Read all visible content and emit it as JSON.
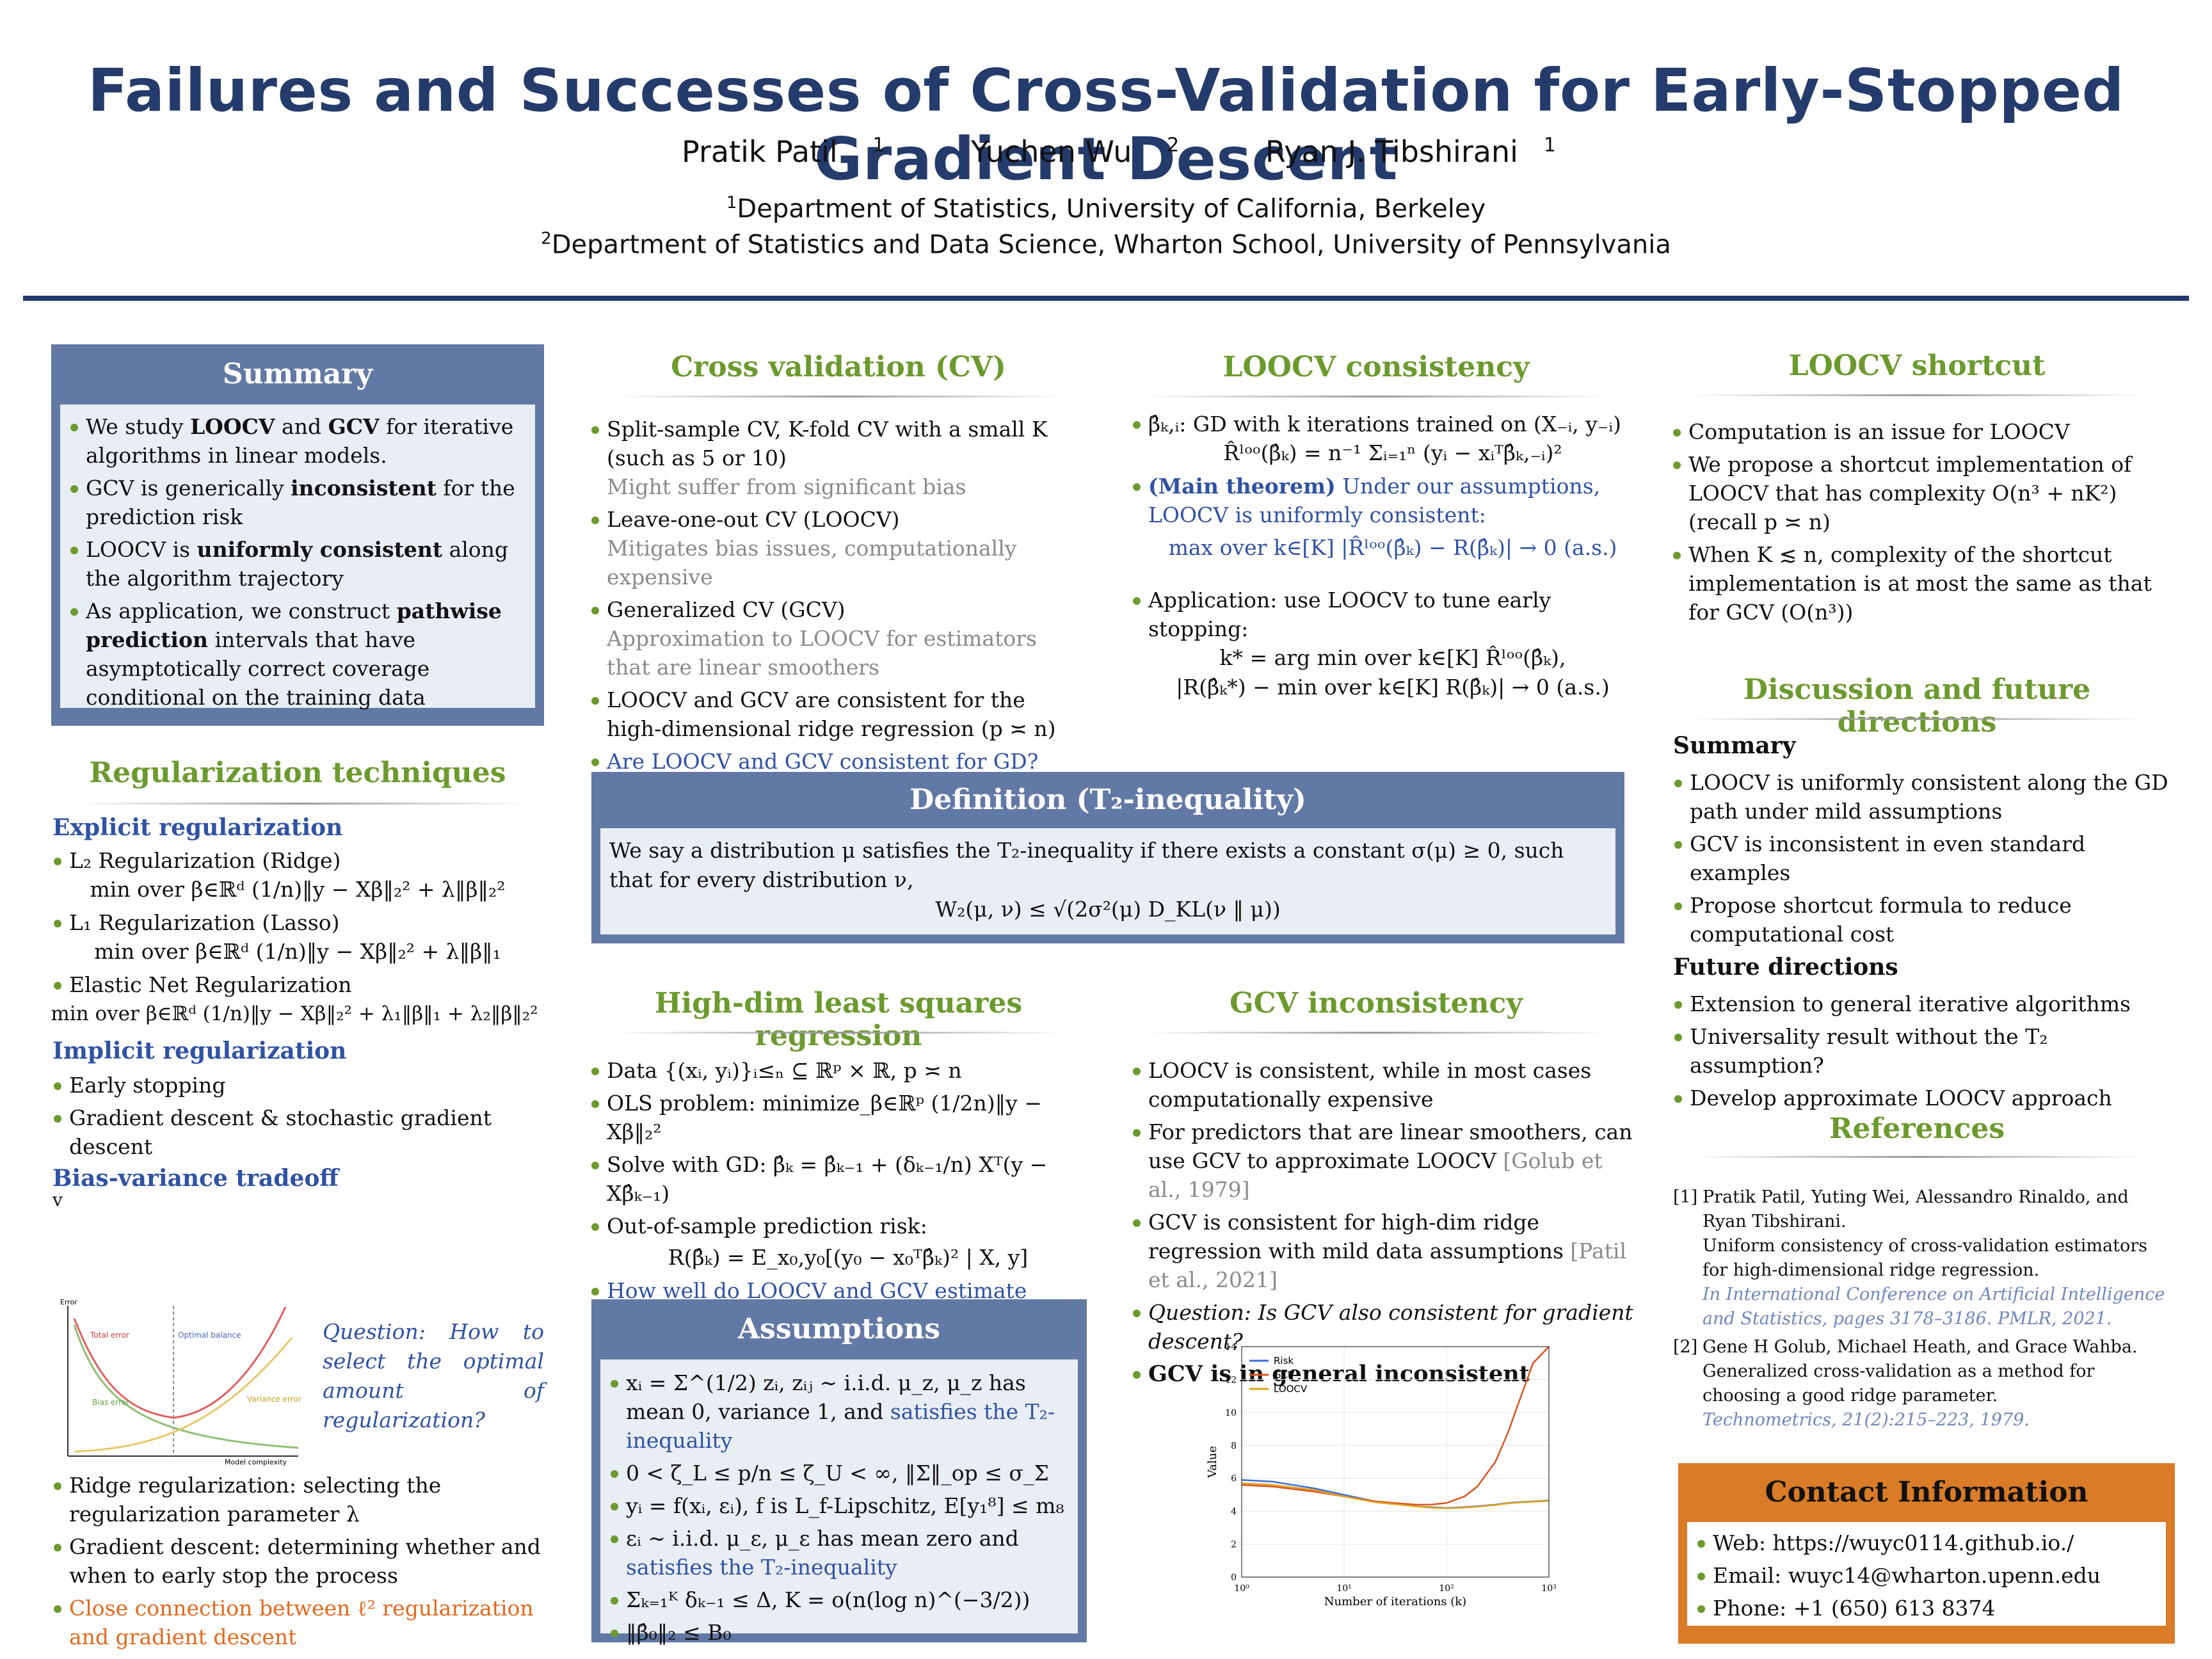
{
  "header": {
    "title": "Failures and Successes of Cross-Validation for Early-Stopped Gradient Descent",
    "authors": [
      {
        "name": "Pratik Patil",
        "sup": "1"
      },
      {
        "name": "Yuchen Wu",
        "sup": "2"
      },
      {
        "name": "Ryan J. Tibshirani",
        "sup": "1"
      }
    ],
    "affiliations": [
      {
        "sup": "1",
        "text": "Department of Statistics, University of California, Berkeley"
      },
      {
        "sup": "2",
        "text": "Department of Statistics and Data Science, Wharton School, University of Pennsylvania"
      }
    ]
  },
  "summary": {
    "title": "Summary",
    "items": [
      "We study LOOCV and GCV for iterative algorithms in linear models.",
      "GCV is generically inconsistent for the prediction risk",
      "LOOCV is uniformly consistent along the algorithm trajectory",
      "As application, we construct pathwise prediction intervals that have asymptotically correct coverage conditional on the training data"
    ]
  },
  "regularization": {
    "title": "Regularization techniques",
    "explicit_title": "Explicit regularization",
    "ridge_label": "L₂ Regularization (Ridge)",
    "ridge_formula": "min over β∈ℝᵈ  (1/n)‖y − Xβ‖₂² + λ‖β‖₂²",
    "lasso_label": "L₁ Regularization (Lasso)",
    "lasso_formula": "min over β∈ℝᵈ  (1/n)‖y − Xβ‖₂² + λ‖β‖₁",
    "enet_label": "Elastic Net Regularization",
    "enet_formula": "min over β∈ℝᵈ  (1/n)‖y − Xβ‖₂² + λ₁‖β‖₁ + λ₂‖β‖₂²",
    "implicit_title": "Implicit regularization",
    "implicit_items": [
      "Early stopping",
      "Gradient descent & stochastic gradient descent"
    ],
    "tradeoff_title": "Bias-variance tradeoff",
    "tradeoff_v": "v",
    "tradeoff_fig": {
      "y_label": "Error",
      "x_label": "Model complexity",
      "total": "Total error",
      "bias": "Bias error",
      "variance": "Variance error",
      "optimal": "Optimal balance"
    },
    "question": "Question: How to select the optimal amount of regularization?",
    "bottom_items": [
      "Ridge regularization: selecting the regularization parameter λ",
      "Gradient descent: determining whether and when to early stop the process"
    ],
    "bottom_orange": "Close connection between ℓ² regularization and gradient descent"
  },
  "cv": {
    "title": "Cross validation (CV)",
    "items": [
      {
        "text": "Split-sample CV, K-fold CV with a small K (such as 5 or 10)",
        "note": "Might suffer from significant bias"
      },
      {
        "text": "Leave-one-out CV (LOOCV)",
        "note": "Mitigates bias issues, computationally expensive"
      },
      {
        "text": "Generalized CV (GCV)",
        "note": "Approximation to LOOCV for estimators that are linear smoothers"
      },
      {
        "text": "LOOCV and GCV are consistent for the high-dimensional ridge regression (p ≍ n)",
        "note": ""
      }
    ],
    "question": "Are LOOCV and GCV consistent for GD?"
  },
  "loocv_consistency": {
    "title": "LOOCV consistency",
    "item1": "β̂ₖ,ᵢ: GD with k iterations trained on (X₋ᵢ, y₋ᵢ)",
    "formula1": "R̂ˡᵒᵒ(β̂ₖ) = n⁻¹ Σᵢ₌₁ⁿ (yᵢ − xᵢᵀβ̂ₖ,₋ᵢ)²",
    "theorem_lead": "(Main theorem)",
    "theorem_text": "Under our assumptions, LOOCV is uniformly consistent:",
    "formula2": "max over k∈[K] |R̂ˡᵒᵒ(β̂ₖ) − R(β̂ₖ)| → 0 (a.s.)",
    "item3": "Application: use LOOCV to tune early stopping:",
    "formula3": "k* = arg min over k∈[K] R̂ˡᵒᵒ(β̂ₖ),",
    "formula4": "|R(β̂ₖ*) − min over k∈[K] R(β̂ₖ)| → 0 (a.s.)"
  },
  "definition": {
    "title": "Definition (T₂-inequality)",
    "text": "We say a distribution μ satisfies the T₂-inequality if there exists a constant σ(μ) ≥ 0, such that for every distribution ν,",
    "formula": "W₂(μ, ν) ≤ √(2σ²(μ) D_KL(ν ‖ μ))"
  },
  "loocv_shortcut": {
    "title": "LOOCV shortcut",
    "items": [
      "Computation is an issue for LOOCV",
      "We propose a shortcut implementation of LOOCV that has complexity O(n³ + nK²) (recall p ≍ n)",
      "When K ≲ n, complexity of the shortcut implementation is at most the same as that for GCV (O(n³))"
    ]
  },
  "discussion": {
    "title": "Discussion and future directions",
    "summary_title": "Summary",
    "summary_items": [
      "LOOCV is uniformly consistent along the GD path under mild assumptions",
      "GCV is inconsistent in even standard examples",
      "Propose shortcut formula to reduce computational cost"
    ],
    "future_title": "Future directions",
    "future_items": [
      "Extension to general iterative algorithms",
      "Universality result without the T₂ assumption?",
      "Develop approximate LOOCV approach"
    ]
  },
  "highdim": {
    "title": "High-dim least squares regression",
    "items": [
      "Data {(xᵢ, yᵢ)}ᵢ≤ₙ ⊆ ℝᵖ × ℝ, p ≍ n",
      "OLS problem: minimize_β∈ℝᵖ (1/2n)‖y − Xβ‖₂²",
      "Solve with GD: β̂ₖ = β̂ₖ₋₁ + (δₖ₋₁/n) Xᵀ(y − Xβ̂ₖ₋₁)",
      "Out-of-sample prediction risk:"
    ],
    "formula": "R(β̂ₖ) = E_x₀,y₀[(y₀ − x₀ᵀβ̂ₖ)² | X, y]",
    "question": "How well do LOOCV and GCV estimate R(β̂ₖ)?"
  },
  "assumptions": {
    "title": "Assumptions",
    "items": [
      {
        "text": "xᵢ = Σ^(1/2) zᵢ, zᵢⱼ ∼ i.i.d. μ_z, μ_z has mean 0, variance 1, and ",
        "blue": "satisfies the T₂-inequality"
      },
      {
        "text": "0 < ζ_L ≤ p/n ≤ ζ_U < ∞, ‖Σ‖_op ≤ σ_Σ",
        "blue": ""
      },
      {
        "text": "yᵢ = f(xᵢ, εᵢ), f is L_f-Lipschitz, E[y₁⁸] ≤ m₈",
        "blue": ""
      },
      {
        "text": "εᵢ ∼ i.i.d. μ_ε, μ_ε has mean zero and ",
        "blue": "satisfies the T₂-inequality"
      },
      {
        "text": "Σₖ₌₁ᴷ δₖ₋₁ ≤ Δ, K = o(n(log n)^(−3/2))",
        "blue": ""
      },
      {
        "text": "‖β̂₀‖₂ ≤ B₀",
        "blue": ""
      }
    ]
  },
  "gcv": {
    "title": "GCV inconsistency",
    "items": [
      {
        "text": "LOOCV is consistent, while in most cases computationally expensive",
        "cite": ""
      },
      {
        "text": "For predictors that are linear smoothers, can use GCV to approximate LOOCV ",
        "cite": "[Golub et al., 1979]"
      },
      {
        "text": "GCV is consistent for high-dim ridge regression with mild data assumptions ",
        "cite": "[Patil et al., 2021]"
      }
    ],
    "question": "Question: Is GCV also consistent for gradient descent?",
    "conclusion": "GCV is in general inconsistent"
  },
  "chart_data": {
    "type": "line",
    "xlabel": "Number of iterations (k)",
    "ylabel": "Value",
    "xscale": "log",
    "xlim": [
      1,
      1000
    ],
    "ylim": [
      0,
      14
    ],
    "xticks": [
      "10⁰",
      "10¹",
      "10²",
      "10³"
    ],
    "yticks": [
      0,
      2,
      4,
      6,
      8,
      10,
      12,
      14
    ],
    "legend_position": "top-left",
    "grid": true,
    "x": [
      1,
      2,
      5,
      10,
      20,
      50,
      70,
      100,
      150,
      200,
      300,
      400,
      500,
      700,
      1000
    ],
    "series": [
      {
        "name": "Risk",
        "color": "#3b6fd6",
        "values": [
          5.9,
          5.8,
          5.4,
          5.0,
          4.6,
          4.3,
          4.25,
          4.2,
          4.25,
          4.3,
          4.4,
          4.5,
          4.55,
          4.6,
          4.65
        ]
      },
      {
        "name": "GCV",
        "color": "#d9541e",
        "values": [
          5.6,
          5.5,
          5.2,
          4.9,
          4.6,
          4.4,
          4.4,
          4.5,
          4.9,
          5.5,
          7.0,
          8.8,
          10.5,
          13.0,
          14.0
        ]
      },
      {
        "name": "LOOCV",
        "color": "#e0a31b",
        "values": [
          5.7,
          5.6,
          5.3,
          4.9,
          4.55,
          4.3,
          4.22,
          4.18,
          4.22,
          4.28,
          4.38,
          4.48,
          4.53,
          4.58,
          4.63
        ]
      }
    ]
  },
  "references": {
    "title": "References",
    "items": [
      {
        "num": "[1]",
        "authors": "Pratik Patil, Yuting Wei, Alessandro Rinaldo, and Ryan Tibshirani.",
        "title": "Uniform consistency of cross-validation estimators for high-dimensional ridge regression.",
        "venue": "In International Conference on Artificial Intelligence and Statistics, pages 3178–3186. PMLR, 2021."
      },
      {
        "num": "[2]",
        "authors": "Gene H Golub, Michael Heath, and Grace Wahba.",
        "title": "Generalized cross-validation as a method for choosing a good ridge parameter.",
        "venue": "Technometrics, 21(2):215–223, 1979."
      }
    ]
  },
  "contact": {
    "title": "Contact Information",
    "items": [
      "Web: https://wuyc0114.github.io./",
      "Email: wuyc14@wharton.upenn.edu",
      "Phone: +1 (650) 613 8374"
    ]
  },
  "colors": {
    "navy": "#243b6b",
    "box": "#6379a5",
    "green": "#6c9a2e",
    "blue": "#2f52a3",
    "orange": "#d97b27"
  }
}
